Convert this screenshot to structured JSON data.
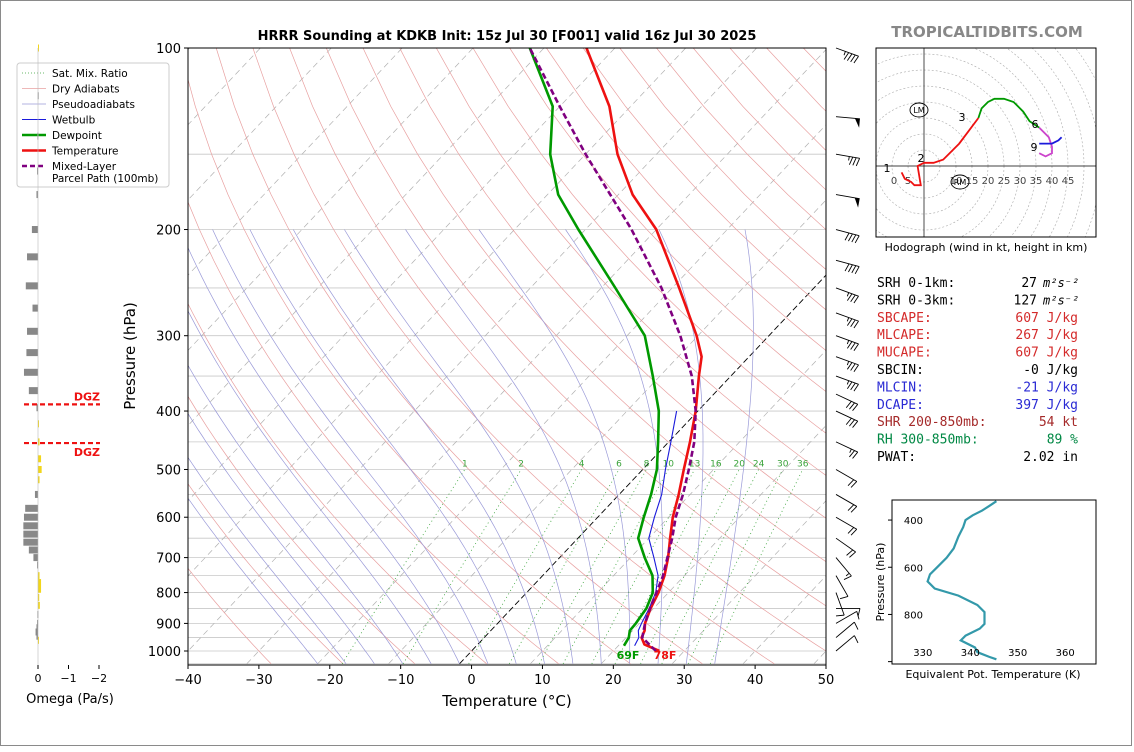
{
  "title": "HRRR Sounding at KDKB Init: 15z Jul 30 [F001] valid 16z Jul 30 2025",
  "watermark": "TROPICALTIDBITS.COM",
  "chart_data": [
    {
      "type": "line",
      "name": "skew-t",
      "xlabel": "Temperature (°C)",
      "ylabel": "Pressure (hPa)",
      "xlim": [
        -40,
        50
      ],
      "ylim": [
        1050,
        100
      ],
      "yscale": "log",
      "xticks": [
        "−40",
        "−30",
        "−20",
        "−10",
        "0",
        "10",
        "20",
        "30",
        "40",
        "50"
      ],
      "yticks": [
        "100",
        "200",
        "300",
        "400",
        "500",
        "600",
        "700",
        "800",
        "900",
        "1000"
      ],
      "legend": {
        "position": "top-left",
        "entries": [
          "Sat. Mix. Ratio",
          "Dry Adiabats",
          "Pseudoadiabats",
          "Wetbulb",
          "Dewpoint",
          "Temperature",
          "Mixed-Layer\nParcel Path (100mb)"
        ]
      },
      "colors": {
        "temperature": "#ee1111",
        "dewpoint": "#009900",
        "wetbulb": "#1a1adb",
        "parcel": "#800080",
        "dry_adiabat": "#e8a0a0",
        "pseudoadiabat": "#9a9ad8",
        "mixing_ratio": "#3aa33a",
        "isotherm": "#aaaaaa"
      },
      "mixing_ratio_labels": [
        "1",
        "2",
        "4",
        "6",
        "8",
        "10",
        "13",
        "16",
        "20",
        "24",
        "30",
        "36"
      ],
      "surface_labels": {
        "dewpoint": "69F",
        "temperature": "78F"
      },
      "series": [
        {
          "name": "Temperature",
          "points": [
            [
              1000,
              26.5
            ],
            [
              975,
              23.5
            ],
            [
              950,
              22.2
            ],
            [
              925,
              21.7
            ],
            [
              900,
              20.8
            ],
            [
              850,
              19.6
            ],
            [
              800,
              18.6
            ],
            [
              750,
              17.2
            ],
            [
              700,
              15.3
            ],
            [
              650,
              13.0
            ],
            [
              600,
              10.6
            ],
            [
              550,
              8.4
            ],
            [
              500,
              5.8
            ],
            [
              450,
              3.0
            ],
            [
              400,
              -0.3
            ],
            [
              350,
              -4.5
            ],
            [
              325,
              -6.7
            ],
            [
              300,
              -10.2
            ],
            [
              250,
              -19.0
            ],
            [
              200,
              -30.0
            ],
            [
              175,
              -38.0
            ],
            [
              150,
              -45.5
            ],
            [
              125,
              -53.0
            ],
            [
              100,
              -64.0
            ]
          ]
        },
        {
          "name": "Dewpoint",
          "points": [
            [
              980,
              20.8
            ],
            [
              950,
              20.4
            ],
            [
              925,
              19.6
            ],
            [
              900,
              19.5
            ],
            [
              850,
              19.0
            ],
            [
              800,
              17.8
            ],
            [
              750,
              15.5
            ],
            [
              700,
              12.0
            ],
            [
              650,
              8.5
            ],
            [
              600,
              6.5
            ],
            [
              550,
              4.5
            ],
            [
              500,
              2.0
            ],
            [
              450,
              -1.5
            ],
            [
              400,
              -5.5
            ],
            [
              350,
              -11.0
            ],
            [
              300,
              -17.5
            ],
            [
              250,
              -28.0
            ],
            [
              200,
              -41.0
            ],
            [
              175,
              -48.5
            ],
            [
              150,
              -55.0
            ],
            [
              125,
              -61.0
            ],
            [
              100,
              -72.0
            ]
          ]
        },
        {
          "name": "Wetbulb",
          "points": [
            [
              980,
              22.3
            ],
            [
              950,
              21.8
            ],
            [
              925,
              20.8
            ],
            [
              900,
              20.3
            ],
            [
              850,
              19.4
            ],
            [
              800,
              18.2
            ],
            [
              750,
              16.3
            ],
            [
              700,
              13.3
            ],
            [
              650,
              10.0
            ],
            [
              600,
              8.0
            ],
            [
              550,
              6.0
            ],
            [
              500,
              3.2
            ],
            [
              450,
              0.3
            ],
            [
              400,
              -3.0
            ]
          ]
        },
        {
          "name": "Mixed-Layer Parcel Path (100mb)",
          "points": [
            [
              1000,
              26.0
            ],
            [
              950,
              22.3
            ],
            [
              900,
              20.8
            ],
            [
              850,
              19.5
            ],
            [
              800,
              18.3
            ],
            [
              750,
              17.0
            ],
            [
              700,
              15.2
            ],
            [
              650,
              13.3
            ],
            [
              600,
              11.0
            ],
            [
              550,
              9.0
            ],
            [
              500,
              6.5
            ],
            [
              450,
              3.6
            ],
            [
              400,
              -0.3
            ],
            [
              350,
              -5.5
            ],
            [
              300,
              -12.5
            ],
            [
              250,
              -21.5
            ],
            [
              200,
              -33.5
            ],
            [
              150,
              -50.0
            ],
            [
              125,
              -60.0
            ],
            [
              100,
              -72.0
            ]
          ]
        }
      ]
    },
    {
      "type": "bar",
      "name": "omega",
      "xlabel": "Omega (Pa/s)",
      "xticks": [
        "0",
        "−1",
        "−2"
      ],
      "dgz_label": "DGZ",
      "dgz_levels": [
        390,
        452
      ],
      "values": [
        [
          960,
          0.02
        ],
        [
          945,
          -0.05
        ],
        [
          930,
          -0.08
        ],
        [
          915,
          -0.05
        ],
        [
          900,
          -0.03
        ],
        [
          870,
          -0.02
        ],
        [
          840,
          0.06
        ],
        [
          815,
          0.04
        ],
        [
          790,
          0.1
        ],
        [
          770,
          0.1
        ],
        [
          750,
          0.05
        ],
        [
          720,
          -0.03
        ],
        [
          700,
          -0.15
        ],
        [
          680,
          -0.3
        ],
        [
          660,
          -0.48
        ],
        [
          640,
          -0.48
        ],
        [
          620,
          -0.48
        ],
        [
          600,
          -0.46
        ],
        [
          580,
          -0.42
        ],
        [
          550,
          -0.1
        ],
        [
          520,
          0.05
        ],
        [
          500,
          0.12
        ],
        [
          480,
          0.1
        ],
        [
          450,
          0.05
        ],
        [
          420,
          0.02
        ],
        [
          395,
          -0.05
        ],
        [
          370,
          -0.3
        ],
        [
          345,
          -0.46
        ],
        [
          320,
          -0.38
        ],
        [
          295,
          -0.36
        ],
        [
          270,
          -0.18
        ],
        [
          248,
          -0.4
        ],
        [
          222,
          -0.36
        ],
        [
          200,
          -0.2
        ],
        [
          175,
          -0.05
        ],
        [
          160,
          -0.03
        ],
        [
          140,
          -0.02
        ],
        [
          120,
          -0.01
        ],
        [
          100,
          0.01
        ]
      ]
    },
    {
      "type": "line",
      "name": "hodograph",
      "caption": "Hodograph (wind in kt, height in km)",
      "ring_labels": [
        "0",
        "5",
        "10",
        "15",
        "20",
        "25",
        "30",
        "35",
        "40",
        "45"
      ],
      "storm_motion_labels": [
        "LM",
        "RM"
      ],
      "height_labels": [
        "1",
        "2",
        "3",
        "6",
        "9"
      ],
      "colors": [
        "#ee1111",
        "#009900",
        "#cc44cc",
        "#1a1adb"
      ],
      "segments": [
        {
          "color": "red",
          "points": [
            [
              -7,
              -2
            ],
            [
              -6,
              -4
            ],
            [
              -4,
              -5
            ],
            [
              -3,
              -6
            ],
            [
              -1,
              -6
            ],
            [
              -2,
              0
            ],
            [
              0,
              1
            ],
            [
              3,
              1
            ],
            [
              6,
              2
            ],
            [
              8,
              4
            ],
            [
              11,
              7
            ],
            [
              14,
              11
            ],
            [
              17,
              15
            ]
          ]
        },
        {
          "color": "green",
          "points": [
            [
              17,
              15
            ],
            [
              18,
              18
            ],
            [
              20,
              20
            ],
            [
              22,
              21
            ],
            [
              25,
              21
            ],
            [
              28,
              20
            ],
            [
              31,
              17
            ],
            [
              33,
              14
            ],
            [
              36,
              12
            ]
          ]
        },
        {
          "color": "magenta",
          "points": [
            [
              36,
              12
            ],
            [
              39,
              9
            ],
            [
              40,
              6
            ],
            [
              40,
              4
            ],
            [
              38,
              3
            ],
            [
              36,
              4
            ]
          ]
        },
        {
          "color": "blue",
          "points": [
            [
              36,
              7
            ],
            [
              38,
              7
            ],
            [
              40,
              7
            ],
            [
              42,
              8
            ],
            [
              43,
              9
            ]
          ]
        }
      ]
    },
    {
      "type": "line",
      "name": "theta-e profile",
      "xlabel": "Equivalent Pot. Temperature (K)",
      "ylabel": "Pressure (hPa)",
      "xticks": [
        "330",
        "340",
        "350",
        "360"
      ],
      "yticks": [
        "400",
        "600",
        "800"
      ],
      "color": "#3399aa",
      "points": [
        [
          320,
          345.5
        ],
        [
          340,
          344.0
        ],
        [
          360,
          342.5
        ],
        [
          380,
          340.5
        ],
        [
          400,
          339.0
        ],
        [
          430,
          338.5
        ],
        [
          470,
          337.5
        ],
        [
          520,
          336.5
        ],
        [
          560,
          335.0
        ],
        [
          600,
          333.0
        ],
        [
          630,
          331.5
        ],
        [
          660,
          331.0
        ],
        [
          690,
          332.5
        ],
        [
          720,
          337.5
        ],
        [
          760,
          341.5
        ],
        [
          790,
          343.0
        ],
        [
          810,
          343.0
        ],
        [
          840,
          343.0
        ],
        [
          860,
          342.0
        ],
        [
          890,
          339.0
        ],
        [
          910,
          338.0
        ],
        [
          940,
          341.0
        ],
        [
          960,
          341.5
        ],
        [
          980,
          344.0
        ],
        [
          990,
          345.5
        ]
      ]
    }
  ],
  "params": [
    {
      "label": "SRH 0-1km:",
      "value": "27",
      "unit": "m²s⁻²",
      "color": "#000000"
    },
    {
      "label": "SRH 0-3km:",
      "value": "127",
      "unit": "m²s⁻²",
      "color": "#000000"
    },
    {
      "label": "SBCAPE:",
      "value": "607 J/kg",
      "unit": "",
      "color": "#d42a2a"
    },
    {
      "label": "MLCAPE:",
      "value": "267 J/kg",
      "unit": "",
      "color": "#d42a2a"
    },
    {
      "label": "MUCAPE:",
      "value": "607 J/kg",
      "unit": "",
      "color": "#d42a2a"
    },
    {
      "label": "SBCIN:",
      "value": "-0 J/kg",
      "unit": "",
      "color": "#000000"
    },
    {
      "label": "MLCIN:",
      "value": "-21 J/kg",
      "unit": "",
      "color": "#2a2ad4"
    },
    {
      "label": "DCAPE:",
      "value": "397 J/kg",
      "unit": "",
      "color": "#2a2ad4"
    },
    {
      "label": "SHR 200-850mb:",
      "value": "54 kt",
      "unit": "",
      "color": "#a52a2a"
    },
    {
      "label": "RH 300-850mb:",
      "value": "89 %",
      "unit": "",
      "color": "#008844"
    },
    {
      "label": "PWAT:",
      "value": "2.02 in",
      "unit": "",
      "color": "#000000"
    }
  ],
  "wind_barbs": [
    {
      "p": 100,
      "spd": 45,
      "dir": 290
    },
    {
      "p": 150,
      "spd": 35,
      "dir": 280
    },
    {
      "p": 130,
      "spd": 50,
      "dir": 275
    },
    {
      "p": 175,
      "spd": 50,
      "dir": 280
    },
    {
      "p": 200,
      "spd": 40,
      "dir": 285
    },
    {
      "p": 225,
      "spd": 40,
      "dir": 285
    },
    {
      "p": 250,
      "spd": 35,
      "dir": 290
    },
    {
      "p": 275,
      "spd": 35,
      "dir": 290
    },
    {
      "p": 300,
      "spd": 35,
      "dir": 290
    },
    {
      "p": 325,
      "spd": 35,
      "dir": 290
    },
    {
      "p": 350,
      "spd": 35,
      "dir": 290
    },
    {
      "p": 375,
      "spd": 30,
      "dir": 295
    },
    {
      "p": 400,
      "spd": 30,
      "dir": 295
    },
    {
      "p": 450,
      "spd": 25,
      "dir": 295
    },
    {
      "p": 500,
      "spd": 20,
      "dir": 300
    },
    {
      "p": 550,
      "spd": 20,
      "dir": 300
    },
    {
      "p": 600,
      "spd": 20,
      "dir": 300
    },
    {
      "p": 650,
      "spd": 20,
      "dir": 305
    },
    {
      "p": 700,
      "spd": 15,
      "dir": 320
    },
    {
      "p": 750,
      "spd": 10,
      "dir": 330
    },
    {
      "p": 800,
      "spd": 10,
      "dir": 340
    },
    {
      "p": 850,
      "spd": 10,
      "dir": 270
    },
    {
      "p": 900,
      "spd": 10,
      "dir": 240
    },
    {
      "p": 950,
      "spd": 10,
      "dir": 230
    },
    {
      "p": 1000,
      "spd": 10,
      "dir": 230
    }
  ]
}
